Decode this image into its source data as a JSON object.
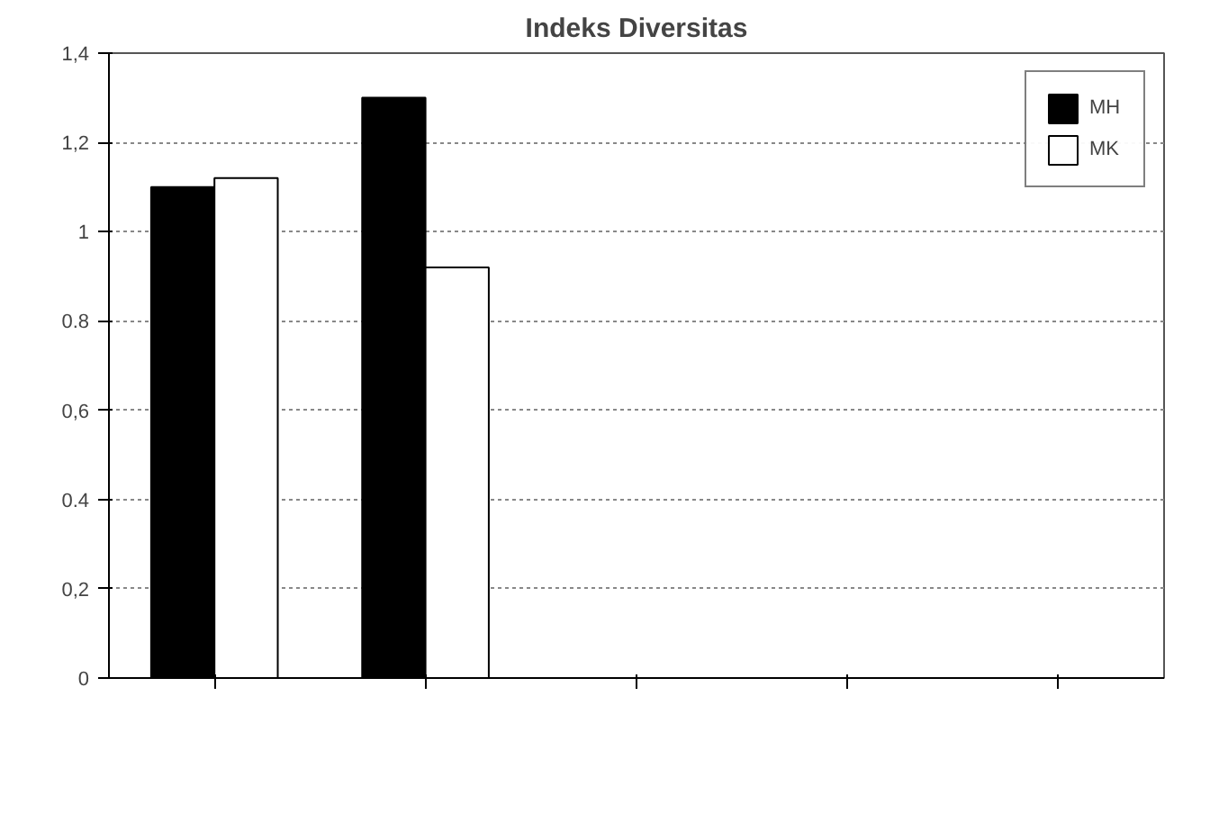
{
  "chart_data": {
    "type": "bar",
    "title": "Indeks Diversitas",
    "categories": [
      null,
      null,
      null,
      null,
      null
    ],
    "series": [
      {
        "name": "MH",
        "color": "#000000",
        "values": [
          1.1,
          1.3,
          null,
          null,
          null
        ]
      },
      {
        "name": "MK",
        "color": "#ffffff",
        "values": [
          1.12,
          0.92,
          null,
          null,
          null
        ]
      }
    ],
    "ylim": [
      0,
      1.4
    ],
    "yticks": [
      0,
      {
        "value": 0.2,
        "label": "0,2"
      },
      0.4,
      {
        "value": 0.6,
        "label": "0,6"
      },
      0.8,
      1,
      {
        "value": 1.2,
        "label": "1,2"
      },
      {
        "value": 1.4,
        "label": "1,4"
      }
    ],
    "grid": "y",
    "legend": "top right"
  }
}
